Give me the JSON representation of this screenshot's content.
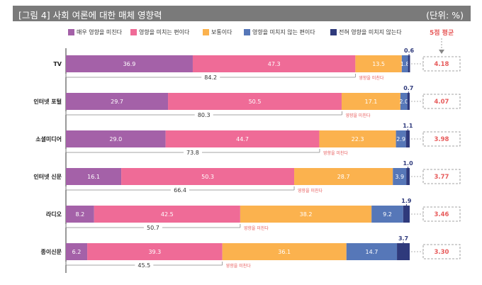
{
  "header": {
    "title": "[그림 4] 사회 여론에 대한 매체 영향력",
    "unit": "(단위: %)"
  },
  "legend": {
    "items": [
      {
        "label": "매우 영향을 미친다",
        "color": "#a461a8"
      },
      {
        "label": "영향을 미치는 편이다",
        "color": "#ef6b97"
      },
      {
        "label": "보통이다",
        "color": "#fbb24e"
      },
      {
        "label": "영향을 미치지 않는 편이다",
        "color": "#5677b8"
      },
      {
        "label": "전혀 영향을 미치지 않는다",
        "color": "#2f3a7c"
      }
    ]
  },
  "avg_title": "5점 평균",
  "influence_label": "영향을 미친다",
  "chart_data": {
    "type": "bar",
    "stacked": true,
    "orientation": "horizontal",
    "categories": [
      "TV",
      "인터넷 포털",
      "소셜미디어",
      "인터넷 신문",
      "라디오",
      "종이신문"
    ],
    "series": [
      {
        "name": "매우 영향을 미친다",
        "values": [
          36.9,
          29.7,
          29.0,
          16.1,
          8.2,
          6.2
        ]
      },
      {
        "name": "영향을 미치는 편이다",
        "values": [
          47.3,
          50.5,
          44.7,
          50.3,
          42.5,
          39.3
        ]
      },
      {
        "name": "보통이다",
        "values": [
          13.5,
          17.1,
          22.3,
          28.7,
          38.2,
          36.1
        ]
      },
      {
        "name": "영향을 미치지 않는 편이다",
        "values": [
          1.8,
          2.0,
          2.9,
          3.9,
          9.2,
          14.7
        ]
      },
      {
        "name": "전혀 영향을 미치지 않는다",
        "values": [
          0.6,
          0.7,
          1.1,
          1.0,
          1.9,
          3.7
        ]
      }
    ],
    "influence_totals": [
      84.2,
      80.3,
      73.8,
      66.4,
      50.7,
      45.5
    ],
    "averages": [
      "4.18",
      "4.07",
      "3.98",
      "3.77",
      "3.46",
      "3.30"
    ],
    "xlim": [
      0,
      100
    ]
  }
}
